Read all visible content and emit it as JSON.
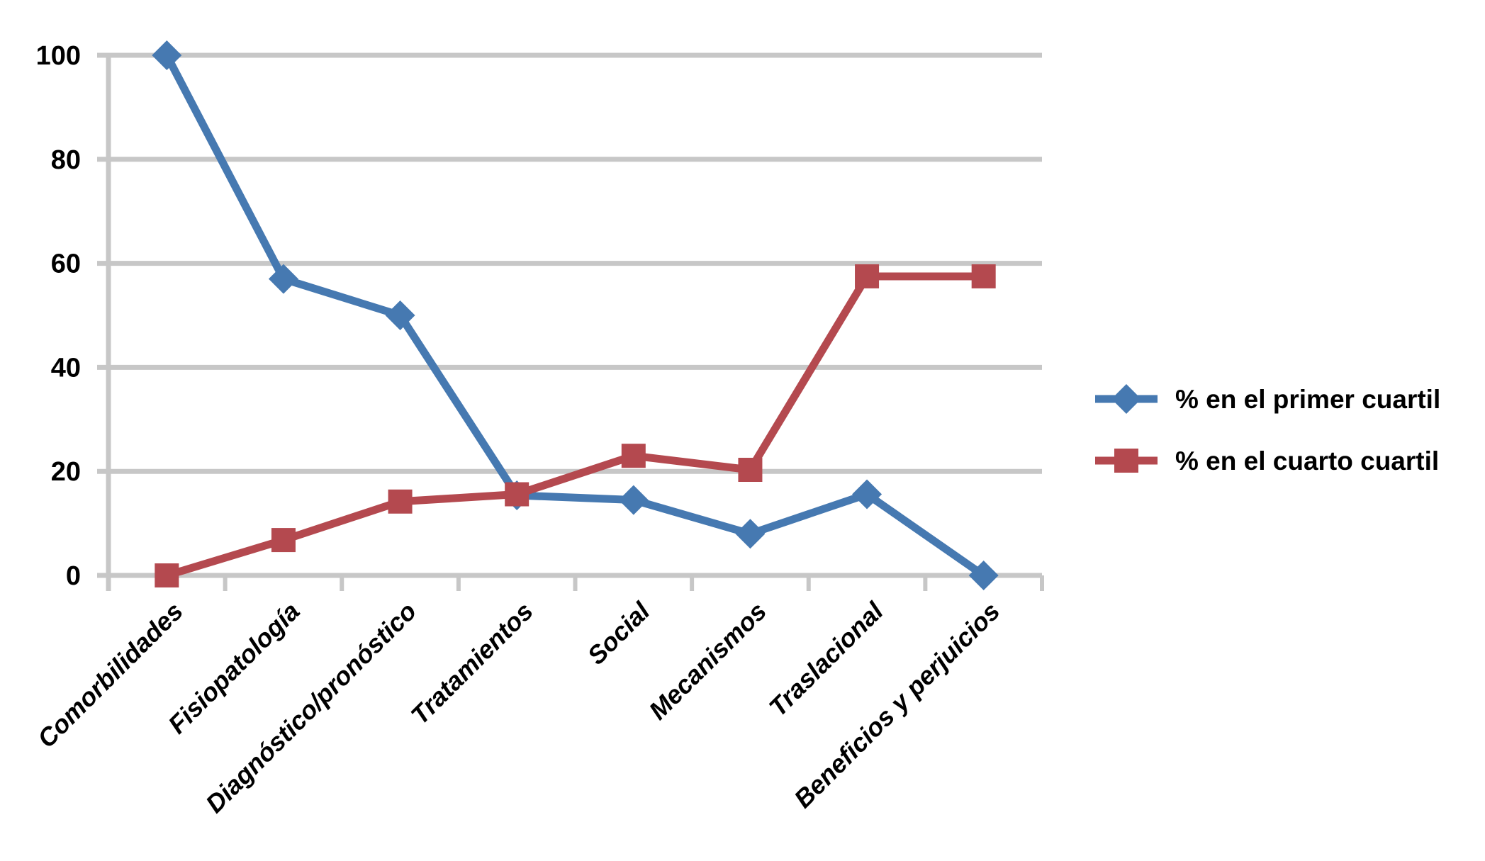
{
  "chart_data": {
    "type": "line",
    "title": "",
    "categories": [
      "Comorbilidades",
      "Fisiopatología",
      "Diagnóstico/pronóstico",
      "Tratamientos",
      "Social",
      "Mecanismos",
      "Traslacional",
      "Beneficios y perjuicios"
    ],
    "series": [
      {
        "name": "% en el primer cuartil",
        "marker": "diamond",
        "color": "#4679B1",
        "values": [
          100,
          57,
          50,
          15.4,
          14.5,
          8,
          15.6,
          0
        ]
      },
      {
        "name": "% en el cuarto cuartil",
        "marker": "square",
        "color": "#B4494F",
        "values": [
          0,
          6.8,
          14.2,
          15.6,
          23,
          20.3,
          57.5,
          57.5
        ]
      }
    ],
    "xlabel": "",
    "ylabel": "",
    "ylim": [
      0,
      100
    ],
    "yticks": [
      0,
      20,
      40,
      60,
      80,
      100
    ],
    "grid": true,
    "gridline_color": "#C7C7C7",
    "axis_color": "#C7C7C7",
    "label_color": "#000000",
    "background_color": "#FFFFFF",
    "legend_position": "right-middle"
  }
}
